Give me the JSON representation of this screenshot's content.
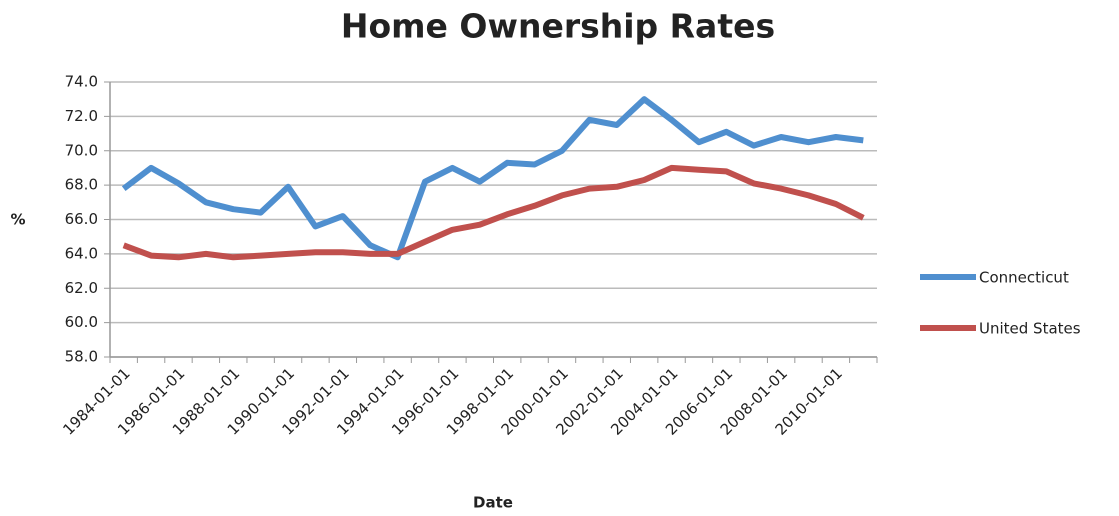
{
  "chart_data": {
    "type": "line",
    "title": "Home Ownership Rates",
    "x_label": "Date",
    "y_label": "%",
    "categories": [
      "1984-01-01",
      null,
      "1986-01-01",
      null,
      "1988-01-01",
      null,
      "1990-01-01",
      null,
      "1992-01-01",
      null,
      "1994-01-01",
      null,
      "1996-01-01",
      null,
      "1998-01-01",
      null,
      "2000-01-01",
      null,
      "2002-01-01",
      null,
      "2004-01-01",
      null,
      "2006-01-01",
      null,
      "2008-01-01",
      null,
      "2010-01-01",
      null
    ],
    "series": [
      {
        "name": "Connecticut",
        "color": "#4f8fcf",
        "values": [
          67.8,
          69.0,
          68.1,
          67.0,
          66.6,
          66.4,
          67.9,
          65.6,
          66.2,
          64.5,
          63.8,
          68.2,
          69.0,
          68.2,
          69.3,
          69.2,
          70.0,
          71.8,
          71.5,
          73.0,
          71.8,
          70.5,
          71.1,
          70.3,
          70.8,
          70.5,
          70.8,
          70.6
        ]
      },
      {
        "name": "United States",
        "color": "#c0504d",
        "values": [
          64.5,
          63.9,
          63.8,
          64.0,
          63.8,
          63.9,
          64.0,
          64.1,
          64.1,
          64.0,
          64.0,
          64.7,
          65.4,
          65.7,
          66.3,
          66.8,
          67.4,
          67.8,
          67.9,
          68.3,
          69.0,
          68.9,
          68.8,
          68.1,
          67.8,
          67.4,
          66.9,
          66.1
        ]
      }
    ],
    "ylim": [
      58,
      74
    ],
    "yticks": [
      {
        "value": 58,
        "label": "58.0"
      },
      {
        "value": 60,
        "label": "60.0"
      },
      {
        "value": 62,
        "label": "62.0"
      },
      {
        "value": 64,
        "label": "64.0"
      },
      {
        "value": 66,
        "label": "66.0"
      },
      {
        "value": 68,
        "label": "68.0"
      },
      {
        "value": 70,
        "label": "70.0"
      },
      {
        "value": 72,
        "label": "72.0"
      },
      {
        "value": 74,
        "label": "74.0"
      }
    ],
    "grid": true,
    "legend": "right"
  }
}
